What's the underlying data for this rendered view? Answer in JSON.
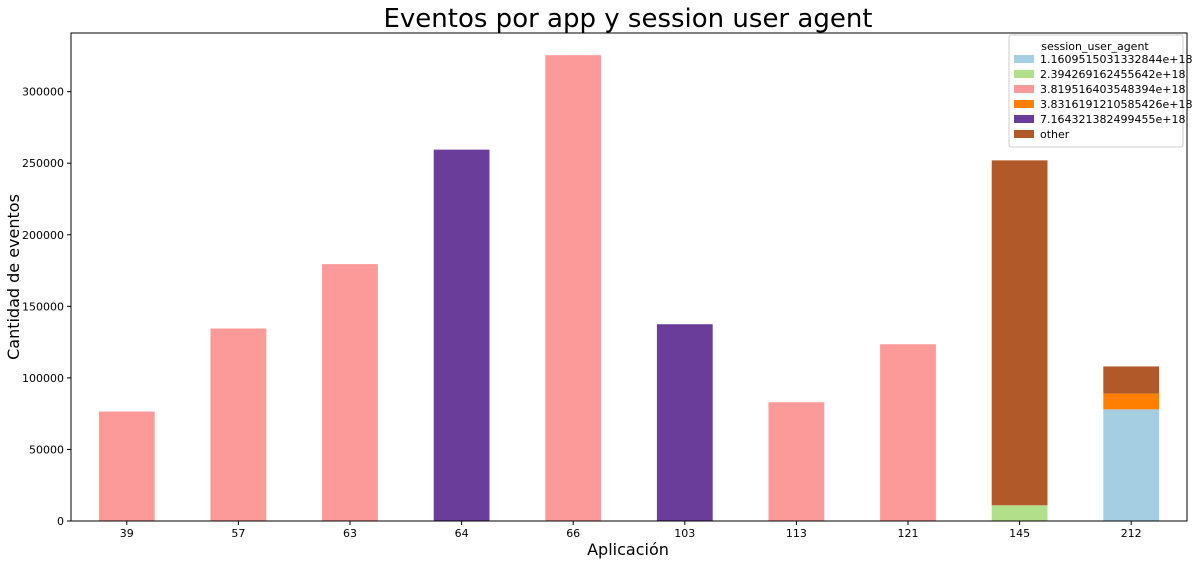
{
  "chart_data": {
    "type": "bar",
    "stacked": true,
    "title": "Eventos por app y session user agent",
    "xlabel": "Aplicación",
    "ylabel": "Cantidad de eventos",
    "categories": [
      "39",
      "57",
      "63",
      "64",
      "66",
      "103",
      "113",
      "121",
      "145",
      "212"
    ],
    "ylim": [
      0,
      341000
    ],
    "yticks": [
      0,
      50000,
      100000,
      150000,
      200000,
      250000,
      300000
    ],
    "grid": false,
    "legend_title": "session_user_agent",
    "legend_position": "top-right",
    "series": [
      {
        "name": "1.1609515031332844e+18",
        "color": "#a6cee3",
        "values": [
          0,
          0,
          0,
          0,
          0,
          0,
          0,
          0,
          0,
          78000
        ]
      },
      {
        "name": "2.394269162455642e+18",
        "color": "#b2df8a",
        "values": [
          0,
          0,
          0,
          0,
          0,
          0,
          0,
          0,
          11000,
          0
        ]
      },
      {
        "name": "3.819516403548394e+18",
        "color": "#fb9a99",
        "values": [
          76500,
          134500,
          179500,
          0,
          325500,
          0,
          83000,
          123500,
          0,
          0
        ]
      },
      {
        "name": "3.8316191210585426e+18",
        "color": "#ff7f00",
        "values": [
          0,
          0,
          0,
          0,
          0,
          0,
          0,
          0,
          0,
          11000
        ]
      },
      {
        "name": "7.164321382499455e+18",
        "color": "#6a3d9a",
        "values": [
          0,
          0,
          0,
          259500,
          0,
          137500,
          0,
          0,
          0,
          0
        ]
      },
      {
        "name": "other",
        "color": "#b15928",
        "values": [
          0,
          0,
          0,
          0,
          0,
          0,
          0,
          0,
          241000,
          19000
        ]
      }
    ]
  }
}
